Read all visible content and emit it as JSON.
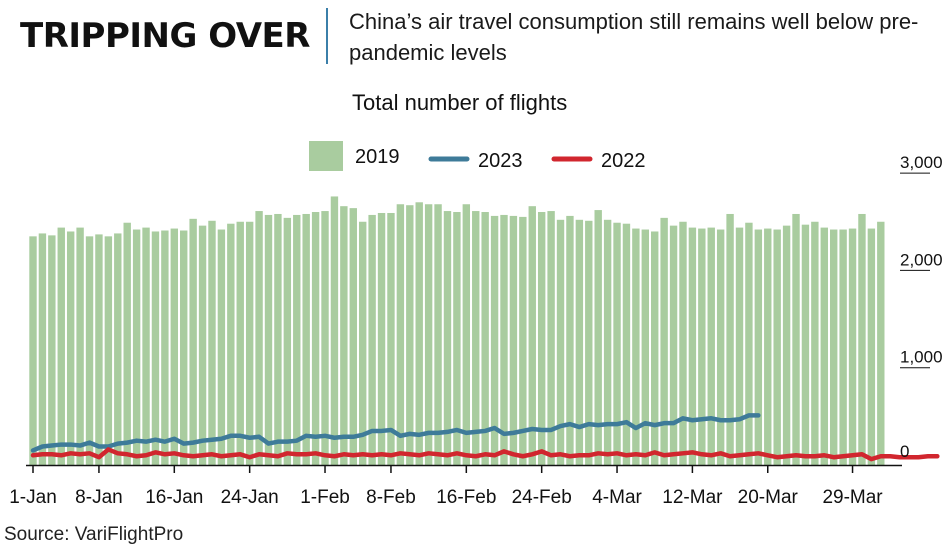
{
  "header": {
    "headline": "TRIPPING OVER",
    "subtitle": "China’s air travel consumption still remains well below pre-pandemic levels"
  },
  "source": "Source: VariFlightPro",
  "colors": {
    "s2019": "#a9cc9f",
    "s2023": "#3e7b99",
    "s2022": "#d1262e",
    "divider": "#3b7fa9"
  },
  "chart_data": {
    "type": "bar",
    "title": "Total number of flights",
    "legend": [
      "2019",
      "2023",
      "2022"
    ],
    "legend_position": "top",
    "y_axis_side": "right",
    "ylim": [
      0,
      3000
    ],
    "y_ticks": [
      0,
      1000,
      2000,
      3000
    ],
    "y_tick_labels": [
      "0",
      "1,000",
      "2,000",
      "3,000"
    ],
    "x_tick_labels": [
      "1-Jan",
      "8-Jan",
      "16-Jan",
      "24-Jan",
      "1-Feb",
      "8-Feb",
      "16-Feb",
      "24-Feb",
      "4-Mar",
      "12-Mar",
      "20-Mar",
      "29-Mar"
    ],
    "x_tick_days": [
      1,
      8,
      16,
      24,
      32,
      39,
      47,
      55,
      63,
      71,
      79,
      88
    ],
    "series": [
      {
        "name": "2019",
        "type": "bar",
        "x_start_day": 1,
        "values": [
          2350,
          2380,
          2360,
          2440,
          2400,
          2440,
          2350,
          2370,
          2350,
          2380,
          2490,
          2420,
          2440,
          2400,
          2410,
          2430,
          2410,
          2530,
          2460,
          2510,
          2420,
          2480,
          2500,
          2500,
          2610,
          2570,
          2580,
          2540,
          2570,
          2580,
          2600,
          2610,
          2760,
          2660,
          2640,
          2500,
          2570,
          2590,
          2590,
          2680,
          2670,
          2700,
          2680,
          2680,
          2610,
          2600,
          2680,
          2610,
          2600,
          2560,
          2570,
          2560,
          2550,
          2660,
          2600,
          2610,
          2520,
          2560,
          2520,
          2510,
          2620,
          2520,
          2490,
          2480,
          2430,
          2420,
          2400,
          2540,
          2460,
          2500,
          2440,
          2430,
          2440,
          2420,
          2580,
          2440,
          2490,
          2420,
          2430,
          2420,
          2460,
          2580,
          2470,
          2500,
          2440,
          2420,
          2420,
          2430,
          2580,
          2430,
          2500
        ]
      },
      {
        "name": "2023",
        "type": "line",
        "x_start_day": 1,
        "values": [
          150,
          190,
          200,
          210,
          210,
          200,
          230,
          190,
          190,
          220,
          230,
          250,
          240,
          260,
          240,
          270,
          220,
          230,
          250,
          260,
          270,
          300,
          300,
          280,
          290,
          220,
          240,
          240,
          250,
          300,
          290,
          300,
          280,
          290,
          290,
          310,
          350,
          350,
          360,
          300,
          320,
          310,
          330,
          330,
          340,
          360,
          330,
          340,
          350,
          380,
          320,
          330,
          350,
          370,
          360,
          360,
          400,
          420,
          390,
          420,
          410,
          420,
          420,
          440,
          380,
          430,
          410,
          430,
          430,
          480,
          460,
          470,
          480,
          460,
          460,
          470,
          510,
          510
        ]
      },
      {
        "name": "2022",
        "type": "line",
        "x_start_day": 1,
        "values": [
          100,
          110,
          110,
          100,
          120,
          110,
          120,
          80,
          160,
          120,
          110,
          90,
          100,
          130,
          110,
          120,
          100,
          90,
          100,
          110,
          90,
          100,
          110,
          80,
          110,
          100,
          90,
          120,
          110,
          110,
          120,
          100,
          90,
          110,
          100,
          110,
          100,
          110,
          100,
          120,
          110,
          100,
          120,
          110,
          100,
          120,
          100,
          90,
          110,
          100,
          140,
          110,
          90,
          110,
          140,
          100,
          110,
          90,
          100,
          100,
          120,
          110,
          120,
          100,
          110,
          100,
          130,
          100,
          110,
          120,
          130,
          110,
          100,
          120,
          90,
          100,
          110,
          120,
          100,
          80,
          90,
          100,
          90,
          90,
          100,
          80,
          90,
          100,
          110,
          60,
          90,
          90,
          80,
          80,
          80,
          90,
          90
        ]
      }
    ]
  }
}
